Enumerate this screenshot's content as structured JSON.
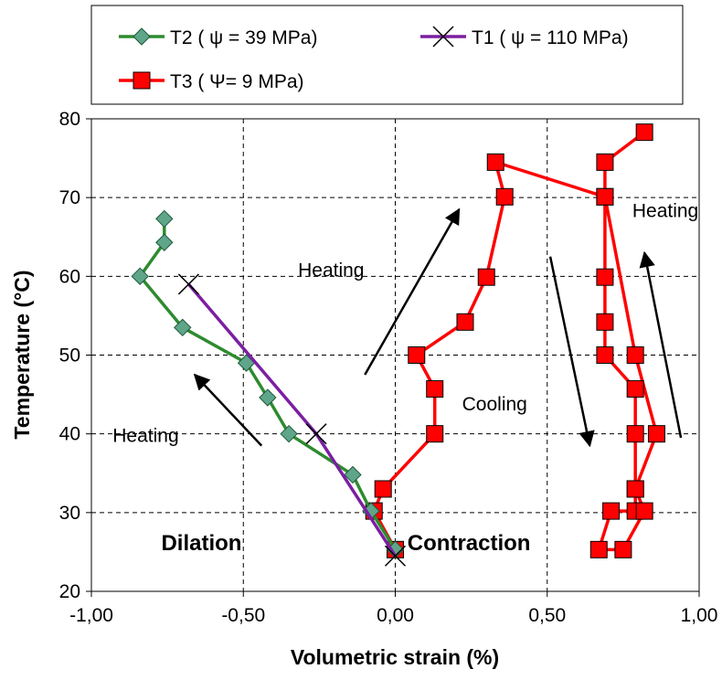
{
  "chart_data": {
    "type": "line",
    "xlabel": "Volumetric strain (%)",
    "ylabel": "Temperature (°C)",
    "xlim": [
      -1.0,
      1.0
    ],
    "ylim": [
      20,
      80
    ],
    "xticks": [
      -1.0,
      -0.5,
      0.0,
      0.5,
      1.0
    ],
    "xtick_labels": [
      "-1,00",
      "-0,50",
      "0,00",
      "0,50",
      "1,00"
    ],
    "yticks": [
      20,
      30,
      40,
      50,
      60,
      70,
      80
    ],
    "ytick_labels": [
      "20",
      "30",
      "40",
      "50",
      "60",
      "70",
      "80"
    ],
    "grid": "dashed",
    "legend_position": "top",
    "series": [
      {
        "name": "T2 ( ψ = 39 MPa)",
        "color": "#2e8b2e",
        "marker": "diamond",
        "marker_color": "#5fa58a",
        "x": [
          0.0,
          -0.08,
          -0.14,
          -0.35,
          -0.42,
          -0.49,
          -0.7,
          -0.84,
          -0.76,
          -0.76
        ],
        "y": [
          25.3,
          30.2,
          34.8,
          40.0,
          44.6,
          49.0,
          53.5,
          60.0,
          64.3,
          67.3
        ]
      },
      {
        "name": "T1 ( ψ = 110 MPa)",
        "color": "#7b1fa2",
        "marker": "x",
        "marker_color": "#000000",
        "x": [
          0.0,
          -0.26,
          -0.68
        ],
        "y": [
          24.5,
          40.0,
          59.0
        ]
      },
      {
        "name": "T3 ( Ψ= 9 MPa)",
        "color": "#ff0000",
        "marker": "square",
        "marker_color": "#ff0000",
        "x": [
          0.0,
          -0.07,
          -0.04,
          0.13,
          0.13,
          0.07,
          0.23,
          0.3,
          0.36,
          0.33,
          0.69,
          0.69,
          0.69,
          0.69,
          0.79,
          0.79,
          0.79,
          0.79,
          0.71,
          0.67,
          0.75,
          0.82,
          0.79,
          0.86,
          0.79,
          0.69,
          0.69,
          0.82
        ],
        "y": [
          25.3,
          30.2,
          33.0,
          40.0,
          45.7,
          50.0,
          54.2,
          59.9,
          70.1,
          74.5,
          70.1,
          59.9,
          54.2,
          50.0,
          45.7,
          40.0,
          33.0,
          30.2,
          30.2,
          25.3,
          25.3,
          30.2,
          33.0,
          40.0,
          50.0,
          70.1,
          74.5,
          78.3
        ]
      }
    ],
    "annotations": [
      {
        "text": "Heating",
        "x": -0.93,
        "y": 39.0,
        "bold": false
      },
      {
        "text": "Heating",
        "x": -0.32,
        "y": 60.0,
        "bold": false
      },
      {
        "text": "Cooling",
        "x": 0.22,
        "y": 43.0,
        "bold": false
      },
      {
        "text": "Heating",
        "x": 0.78,
        "y": 67.5,
        "bold": false
      },
      {
        "text": "Dilation",
        "x": -0.77,
        "y": 25.2,
        "bold": true
      },
      {
        "text": "Contraction",
        "x": 0.04,
        "y": 25.2,
        "bold": true
      }
    ],
    "arrows": [
      {
        "x1": -0.87,
        "y1": 50.5,
        "x2": -0.87,
        "y2": 50.5,
        "x_end": -0.87
      },
      {
        "x1": -0.44,
        "y1": 38.5,
        "x2": -0.66,
        "y2": 47.5
      },
      {
        "x1": -0.1,
        "y1": 47.5,
        "x2": 0.21,
        "y2": 68.5
      },
      {
        "x1": 0.51,
        "y1": 62.5,
        "x2": 0.64,
        "y2": 38.5
      },
      {
        "x1": 0.94,
        "y1": 39.5,
        "x2": 0.82,
        "y2": 63.0
      }
    ]
  }
}
